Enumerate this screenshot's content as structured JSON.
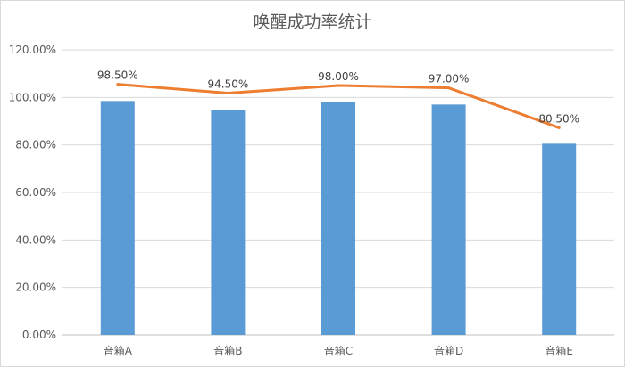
{
  "chart_data": {
    "type": "bar",
    "title": "唤醒成功率统计",
    "categories": [
      "音箱A",
      "音箱B",
      "音箱C",
      "音箱D",
      "音箱E"
    ],
    "series": [
      {
        "name": "",
        "kind": "bar",
        "color": "#5b9bd5",
        "values": [
          98.5,
          94.5,
          98.0,
          97.0,
          80.5
        ]
      },
      {
        "name": "",
        "kind": "line",
        "color": "#ed7d31",
        "values": [
          105.5,
          101.8,
          105.0,
          104.0,
          87.2
        ]
      }
    ],
    "data_labels": [
      "98.50%",
      "94.50%",
      "98.00%",
      "97.00%",
      "80.50%"
    ],
    "y_ticks": [
      "0.00%",
      "20.00%",
      "40.00%",
      "60.00%",
      "80.00%",
      "100.00%",
      "120.00%"
    ],
    "ylim": [
      0,
      120
    ],
    "xlabel": "",
    "ylabel": "",
    "grid": true,
    "legend": "none"
  }
}
